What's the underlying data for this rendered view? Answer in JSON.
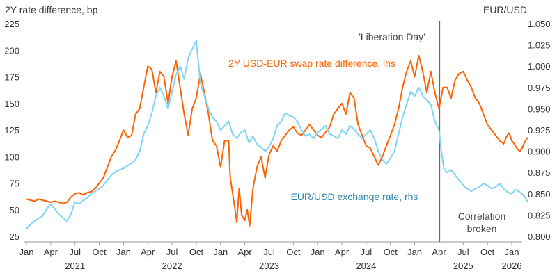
{
  "chart_data": {
    "type": "line",
    "left_axis_title": "2Y rate difference, bp",
    "right_axis_title": "EUR/USD",
    "left_ticks": [
      225,
      200,
      175,
      150,
      125,
      100,
      75,
      50,
      25
    ],
    "right_ticks": [
      "1.050",
      "1.025",
      "1.000",
      "0.975",
      "0.950",
      "0.925",
      "0.900",
      "0.875",
      "0.850",
      "0.825",
      "0.800"
    ],
    "left_ylim": [
      25,
      225
    ],
    "right_ylim": [
      0.8,
      1.05
    ],
    "x_month_ticks": [
      {
        "t": 0,
        "label": "Jan"
      },
      {
        "t": 3,
        "label": "Apr"
      },
      {
        "t": 6,
        "label": "Jul"
      },
      {
        "t": 9,
        "label": "Oct"
      },
      {
        "t": 12,
        "label": "Jan"
      },
      {
        "t": 15,
        "label": "Apr"
      },
      {
        "t": 18,
        "label": "Jul"
      },
      {
        "t": 21,
        "label": "Oct"
      },
      {
        "t": 24,
        "label": "Jan"
      },
      {
        "t": 27,
        "label": "Apr"
      },
      {
        "t": 30,
        "label": "Jul"
      },
      {
        "t": 33,
        "label": "Oct"
      },
      {
        "t": 36,
        "label": "Jan"
      },
      {
        "t": 39,
        "label": "Apr"
      },
      {
        "t": 42,
        "label": "Jul"
      },
      {
        "t": 45,
        "label": "Oct"
      },
      {
        "t": 48,
        "label": "Jan"
      },
      {
        "t": 51,
        "label": "Apr"
      },
      {
        "t": 54,
        "label": "Jul"
      },
      {
        "t": 57,
        "label": "Oct"
      },
      {
        "t": 60,
        "label": "Jan"
      }
    ],
    "x_year_ticks": [
      {
        "t": 6,
        "label": "2021"
      },
      {
        "t": 18,
        "label": "2022"
      },
      {
        "t": 30,
        "label": "2023"
      },
      {
        "t": 42,
        "label": "2024"
      },
      {
        "t": 54,
        "label": "2025"
      },
      {
        "t": 60,
        "label": "2026"
      }
    ],
    "x_range_months": [
      0,
      60
    ],
    "event_line_month": 51.1,
    "series": [
      {
        "name": "2Y USD-EUR swap rate difference, lhs",
        "axis": "left",
        "color": "#FF6200",
        "points": [
          [
            0,
            60
          ],
          [
            0.5,
            59
          ],
          [
            1,
            58
          ],
          [
            1.5,
            60
          ],
          [
            2,
            59
          ],
          [
            2.5,
            58
          ],
          [
            3,
            57
          ],
          [
            3.5,
            58
          ],
          [
            4,
            57
          ],
          [
            4.5,
            56
          ],
          [
            5,
            57
          ],
          [
            5.5,
            62
          ],
          [
            6,
            65
          ],
          [
            6.5,
            66
          ],
          [
            7,
            64
          ],
          [
            7.5,
            66
          ],
          [
            8,
            67
          ],
          [
            8.5,
            70
          ],
          [
            9,
            75
          ],
          [
            9.5,
            80
          ],
          [
            10,
            90
          ],
          [
            10.5,
            100
          ],
          [
            11,
            106
          ],
          [
            11.5,
            115
          ],
          [
            12,
            125
          ],
          [
            12.5,
            118
          ],
          [
            13,
            120
          ],
          [
            13.5,
            140
          ],
          [
            14,
            145
          ],
          [
            14.5,
            165
          ],
          [
            15,
            185
          ],
          [
            15.5,
            182
          ],
          [
            16,
            160
          ],
          [
            16.5,
            180
          ],
          [
            17,
            175
          ],
          [
            17.5,
            150
          ],
          [
            18,
            175
          ],
          [
            18.5,
            190
          ],
          [
            19,
            165
          ],
          [
            19.5,
            140
          ],
          [
            20,
            120
          ],
          [
            20.5,
            145
          ],
          [
            21,
            155
          ],
          [
            21.5,
            178
          ],
          [
            22,
            160
          ],
          [
            22.5,
            140
          ],
          [
            23,
            115
          ],
          [
            23.5,
            110
          ],
          [
            24,
            90
          ],
          [
            24.5,
            115
          ],
          [
            25,
            115
          ],
          [
            25.2,
            80
          ],
          [
            25.5,
            65
          ],
          [
            25.8,
            50
          ],
          [
            26,
            38
          ],
          [
            26.3,
            70
          ],
          [
            26.6,
            45
          ],
          [
            27,
            40
          ],
          [
            27.3,
            50
          ],
          [
            27.6,
            35
          ],
          [
            28,
            70
          ],
          [
            28.5,
            90
          ],
          [
            29,
            100
          ],
          [
            29.5,
            80
          ],
          [
            30,
            102
          ],
          [
            30.5,
            110
          ],
          [
            31,
            105
          ],
          [
            31.5,
            115
          ],
          [
            32,
            120
          ],
          [
            32.5,
            125
          ],
          [
            33,
            128
          ],
          [
            33.5,
            122
          ],
          [
            34,
            120
          ],
          [
            34.5,
            125
          ],
          [
            35,
            130
          ],
          [
            35.5,
            125
          ],
          [
            36,
            120
          ],
          [
            36.5,
            118
          ],
          [
            37,
            123
          ],
          [
            37.5,
            128
          ],
          [
            38,
            140
          ],
          [
            38.5,
            145
          ],
          [
            39,
            150
          ],
          [
            39.5,
            140
          ],
          [
            40,
            160
          ],
          [
            40.5,
            155
          ],
          [
            41,
            130
          ],
          [
            41.5,
            120
          ],
          [
            42,
            110
          ],
          [
            42.5,
            108
          ],
          [
            43,
            100
          ],
          [
            43.5,
            92
          ],
          [
            44,
            100
          ],
          [
            44.5,
            110
          ],
          [
            45,
            120
          ],
          [
            45.5,
            130
          ],
          [
            46,
            145
          ],
          [
            46.5,
            165
          ],
          [
            47,
            180
          ],
          [
            47.5,
            190
          ],
          [
            48,
            175
          ],
          [
            48.5,
            195
          ],
          [
            49,
            180
          ],
          [
            49.5,
            160
          ],
          [
            50,
            180
          ],
          [
            50.5,
            160
          ],
          [
            51,
            145
          ],
          [
            51.5,
            165
          ],
          [
            52,
            165
          ],
          [
            52.5,
            155
          ],
          [
            53,
            172
          ],
          [
            53.5,
            178
          ],
          [
            54,
            180
          ],
          [
            54.5,
            172
          ],
          [
            55,
            165
          ],
          [
            55.5,
            155
          ],
          [
            56,
            150
          ],
          [
            56.5,
            140
          ],
          [
            57,
            130
          ],
          [
            57.5,
            125
          ],
          [
            58,
            120
          ],
          [
            58.5,
            115
          ],
          [
            59,
            112
          ],
          [
            59.3,
            118
          ],
          [
            59.6,
            122
          ],
          [
            59.8,
            120
          ],
          [
            60,
            115
          ],
          [
            60.3,
            112
          ],
          [
            60.6,
            108
          ],
          [
            61,
            105
          ],
          [
            61.3,
            108
          ],
          [
            61.5,
            112
          ],
          [
            61.8,
            116
          ],
          [
            62,
            118
          ]
        ]
      },
      {
        "name": "EUR/USD exchange rate, rhs",
        "axis": "right",
        "color": "#7DD4F5",
        "points": [
          [
            0,
            0.809
          ],
          [
            0.5,
            0.814
          ],
          [
            1,
            0.818
          ],
          [
            1.5,
            0.821
          ],
          [
            2,
            0.824
          ],
          [
            2.5,
            0.832
          ],
          [
            3,
            0.838
          ],
          [
            3.5,
            0.832
          ],
          [
            4,
            0.826
          ],
          [
            4.5,
            0.822
          ],
          [
            5,
            0.818
          ],
          [
            5.5,
            0.826
          ],
          [
            6,
            0.84
          ],
          [
            6.5,
            0.838
          ],
          [
            7,
            0.842
          ],
          [
            7.5,
            0.845
          ],
          [
            8,
            0.85
          ],
          [
            8.5,
            0.853
          ],
          [
            9,
            0.856
          ],
          [
            9.5,
            0.86
          ],
          [
            10,
            0.866
          ],
          [
            10.5,
            0.872
          ],
          [
            11,
            0.876
          ],
          [
            11.5,
            0.878
          ],
          [
            12,
            0.88
          ],
          [
            12.5,
            0.883
          ],
          [
            13,
            0.886
          ],
          [
            13.5,
            0.89
          ],
          [
            14,
            0.9
          ],
          [
            14.5,
            0.92
          ],
          [
            15,
            0.93
          ],
          [
            15.5,
            0.945
          ],
          [
            16,
            0.965
          ],
          [
            16.5,
            0.975
          ],
          [
            17,
            0.965
          ],
          [
            17.5,
            0.95
          ],
          [
            18,
            0.97
          ],
          [
            18.5,
            0.99
          ],
          [
            19,
            1.0
          ],
          [
            19.5,
            0.985
          ],
          [
            20,
            1.01
          ],
          [
            20.5,
            1.02
          ],
          [
            21,
            1.03
          ],
          [
            21.5,
            0.98
          ],
          [
            22,
            0.965
          ],
          [
            22.5,
            0.95
          ],
          [
            23,
            0.94
          ],
          [
            23.5,
            0.935
          ],
          [
            24,
            0.925
          ],
          [
            24.5,
            0.93
          ],
          [
            25,
            0.935
          ],
          [
            25.5,
            0.92
          ],
          [
            26,
            0.915
          ],
          [
            26.5,
            0.922
          ],
          [
            27,
            0.925
          ],
          [
            27.5,
            0.91
          ],
          [
            28,
            0.918
          ],
          [
            28.5,
            0.908
          ],
          [
            29,
            0.905
          ],
          [
            29.5,
            0.9
          ],
          [
            30,
            0.905
          ],
          [
            30.5,
            0.915
          ],
          [
            31,
            0.93
          ],
          [
            31.5,
            0.935
          ],
          [
            32,
            0.945
          ],
          [
            32.5,
            0.942
          ],
          [
            33,
            0.94
          ],
          [
            33.5,
            0.935
          ],
          [
            34,
            0.925
          ],
          [
            34.5,
            0.918
          ],
          [
            35,
            0.92
          ],
          [
            35.5,
            0.915
          ],
          [
            36,
            0.922
          ],
          [
            36.5,
            0.926
          ],
          [
            37,
            0.93
          ],
          [
            37.5,
            0.92
          ],
          [
            38,
            0.918
          ],
          [
            38.5,
            0.915
          ],
          [
            39,
            0.925
          ],
          [
            39.5,
            0.92
          ],
          [
            40,
            0.93
          ],
          [
            40.5,
            0.926
          ],
          [
            41,
            0.92
          ],
          [
            41.5,
            0.915
          ],
          [
            42,
            0.92
          ],
          [
            42.5,
            0.925
          ],
          [
            43,
            0.915
          ],
          [
            43.5,
            0.9
          ],
          [
            44,
            0.89
          ],
          [
            44.5,
            0.885
          ],
          [
            45,
            0.892
          ],
          [
            45.5,
            0.9
          ],
          [
            46,
            0.92
          ],
          [
            46.5,
            0.94
          ],
          [
            47,
            0.955
          ],
          [
            47.5,
            0.97
          ],
          [
            48,
            0.965
          ],
          [
            48.5,
            0.975
          ],
          [
            49,
            0.965
          ],
          [
            49.5,
            0.96
          ],
          [
            50,
            0.955
          ],
          [
            50.5,
            0.935
          ],
          [
            51,
            0.925
          ],
          [
            51.3,
            0.9
          ],
          [
            51.6,
            0.88
          ],
          [
            52,
            0.875
          ],
          [
            52.5,
            0.878
          ],
          [
            53,
            0.872
          ],
          [
            53.5,
            0.866
          ],
          [
            54,
            0.86
          ],
          [
            54.5,
            0.856
          ],
          [
            55,
            0.853
          ],
          [
            55.5,
            0.856
          ],
          [
            56,
            0.858
          ],
          [
            56.5,
            0.862
          ],
          [
            57,
            0.86
          ],
          [
            57.5,
            0.856
          ],
          [
            58,
            0.858
          ],
          [
            58.5,
            0.862
          ],
          [
            59,
            0.856
          ],
          [
            59.5,
            0.852
          ],
          [
            60,
            0.85
          ],
          [
            60.5,
            0.855
          ],
          [
            61,
            0.852
          ],
          [
            61.5,
            0.848
          ],
          [
            62,
            0.84
          ]
        ]
      }
    ],
    "annotations": [
      {
        "id": "liberation-day",
        "text": "'Liberation Day'",
        "color": "#444444"
      },
      {
        "id": "swap-series-label",
        "text": "2Y USD-EUR swap rate difference, lhs",
        "color": "#FF6200"
      },
      {
        "id": "fx-series-label",
        "text": "EUR/USD exchange rate, rhs",
        "color": "#2C85A8"
      },
      {
        "id": "correlation-line1",
        "text": "Correlation",
        "color": "#444444"
      },
      {
        "id": "correlation-line2",
        "text": "broken",
        "color": "#444444"
      }
    ]
  }
}
